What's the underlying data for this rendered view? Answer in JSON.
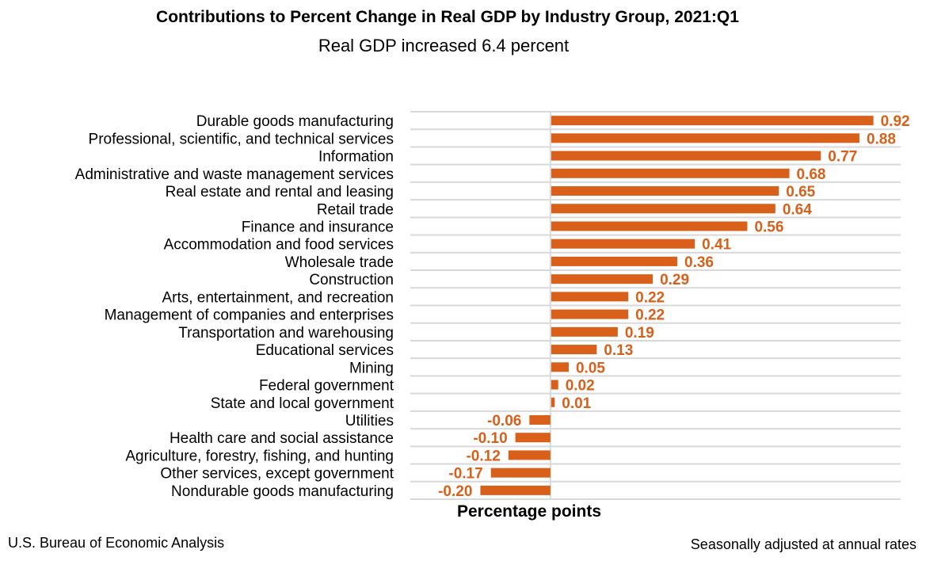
{
  "chart_data": {
    "type": "bar",
    "orientation": "horizontal",
    "title": "Contributions to Percent Change in Real GDP by Industry Group, 2021:Q1",
    "subtitle": "Real GDP increased 6.4 percent",
    "xlabel": "Percentage points",
    "ylabel": "",
    "xlim": [
      -0.4,
      1.0
    ],
    "grid": "horizontal separators",
    "bar_color": "#D9601A",
    "label_color": "#D9601A",
    "categories": [
      "Durable goods manufacturing",
      "Professional, scientific, and technical services",
      "Information",
      "Administrative and waste management services",
      "Real estate and rental and leasing",
      "Retail trade",
      "Finance and insurance",
      "Accommodation and food services",
      "Wholesale trade",
      "Construction",
      "Arts, entertainment, and recreation",
      "Management of companies and enterprises",
      "Transportation and warehousing",
      "Educational services",
      "Mining",
      "Federal government",
      "State and local government",
      "Utilities",
      "Health care and social assistance",
      "Agriculture, forestry, fishing, and hunting",
      "Other services, except government",
      "Nondurable goods manufacturing"
    ],
    "values": [
      0.92,
      0.88,
      0.77,
      0.68,
      0.65,
      0.64,
      0.56,
      0.41,
      0.36,
      0.29,
      0.22,
      0.22,
      0.19,
      0.13,
      0.05,
      0.02,
      0.01,
      -0.06,
      -0.1,
      -0.12,
      -0.17,
      -0.2
    ],
    "data_labels": [
      "0.92",
      "0.88",
      "0.77",
      "0.68",
      "0.65",
      "0.64",
      "0.56",
      "0.41",
      "0.36",
      "0.29",
      "0.22",
      "0.22",
      "0.19",
      "0.13",
      "0.05",
      "0.02",
      "0.01",
      "-0.06",
      "-0.10",
      "-0.12",
      "-0.17",
      "-0.20"
    ]
  },
  "footer": {
    "source": "U.S. Bureau of Economic Analysis",
    "note": "Seasonally adjusted at annual rates"
  }
}
